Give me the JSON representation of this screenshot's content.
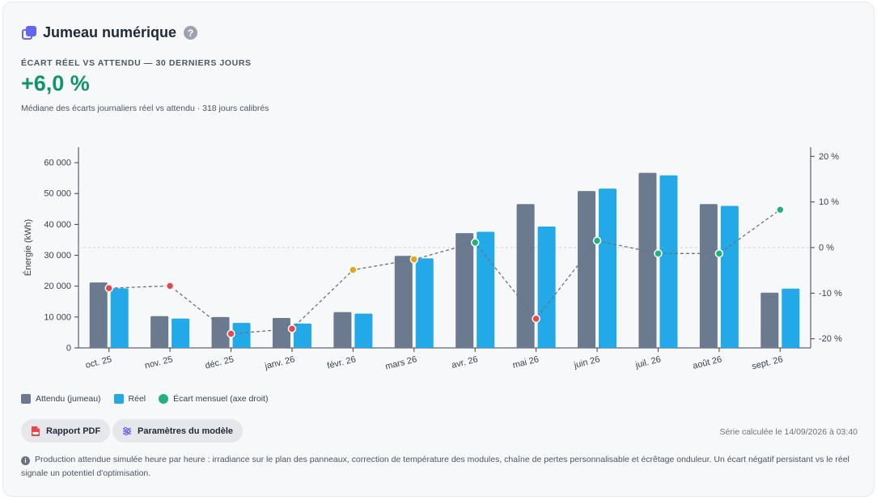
{
  "header": {
    "title": "Jumeau numérique",
    "help_icon": "?"
  },
  "kpi": {
    "overline": "ÉCART RÉEL VS ATTENDU — 30 DERNIERS JOURS",
    "value": "+6,0 %",
    "caption": "Médiane des écarts journaliers réel vs attendu · 318 jours calibrés"
  },
  "colors": {
    "attendu": "#6b7a8f",
    "reel": "#23a9e8",
    "ecart_positive": "#22b07d",
    "ecart_negative": "#e5484d",
    "ecart_neutral": "#e8a21c",
    "kpi": "#109468",
    "accent": "#6366f1"
  },
  "chart_data": {
    "type": "bar",
    "categories": [
      "oct. 25",
      "nov. 25",
      "déc. 25",
      "janv. 26",
      "févr. 26",
      "mars 26",
      "avr. 26",
      "mai 26",
      "juin 26",
      "juil. 26",
      "août 26",
      "sept. 26"
    ],
    "series": [
      {
        "name": "Attendu (jumeau)",
        "values": [
          21200,
          10300,
          10000,
          9700,
          11600,
          29800,
          37200,
          46600,
          50800,
          56700,
          46600,
          17900
        ]
      },
      {
        "name": "Réel",
        "values": [
          19300,
          9500,
          8100,
          7900,
          11100,
          29000,
          37600,
          39300,
          51600,
          55900,
          46000,
          19200
        ]
      },
      {
        "name": "Écart mensuel (axe droit)",
        "axis": "right",
        "type": "line",
        "values": [
          -8.9,
          -8.4,
          -18.9,
          -17.8,
          -4.9,
          -2.6,
          1.1,
          -15.6,
          1.5,
          -1.3,
          -1.3,
          8.3
        ]
      }
    ],
    "ylabel": "Énergie (kWh)",
    "ylim": [
      0,
      65000
    ],
    "yticks": [
      "0",
      "10 000",
      "20 000",
      "30 000",
      "40 000",
      "50 000",
      "60 000"
    ],
    "y2lim": [
      -22,
      22
    ],
    "y2ticks": [
      "20 %",
      "10 %",
      "0 %",
      "-10 %",
      "-20 %"
    ],
    "y2tick_values": [
      20,
      10,
      0,
      -10,
      -20
    ],
    "legend_position": "bottom-left",
    "grid": false
  },
  "legend": {
    "attendu": "Attendu (jumeau)",
    "reel": "Réel",
    "ecart": "Écart mensuel (axe droit)"
  },
  "actions": {
    "pdf_label": "Rapport PDF",
    "settings_label": "Paramètres du modèle"
  },
  "footer": {
    "timestamp": "Série calculée le 14/09/2026 à 03:40",
    "note": "Production attendue simulée heure par heure : irradiance sur le plan des panneaux, correction de température des modules, chaîne de pertes personnalisable et écrêtage onduleur. Un écart négatif persistant vs le réel signale un potentiel d'optimisation."
  }
}
